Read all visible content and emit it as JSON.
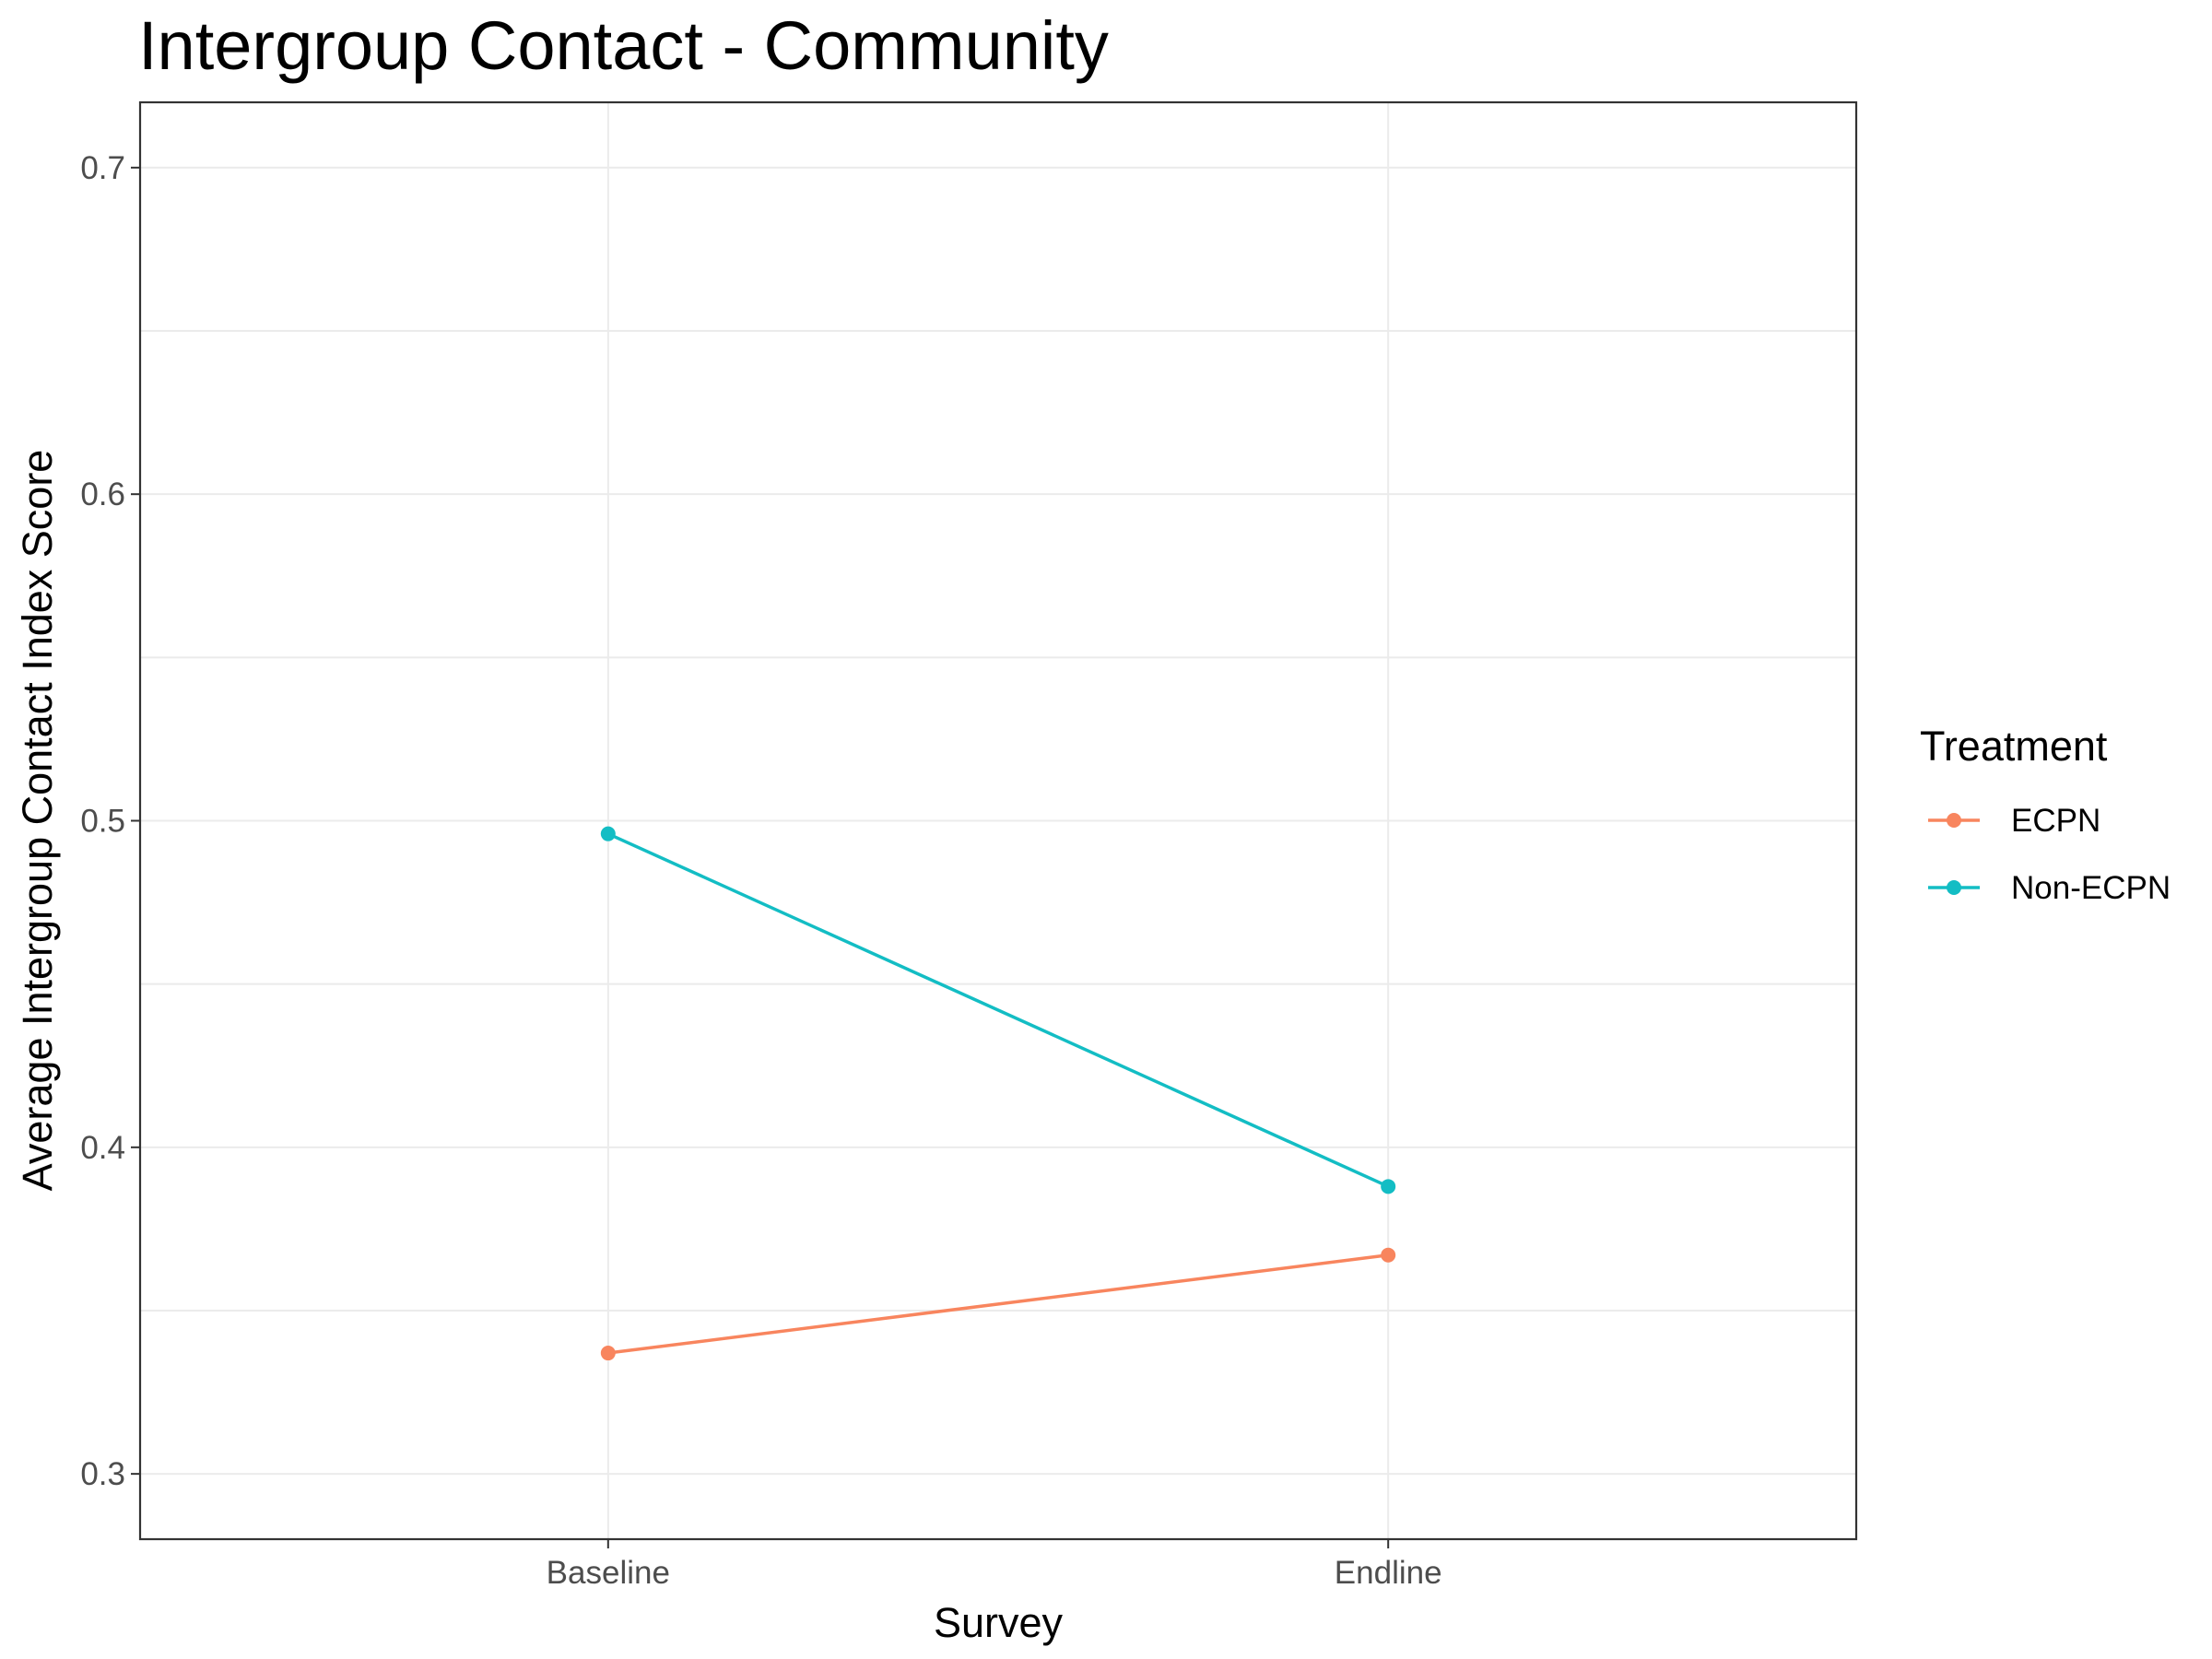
{
  "chart_data": {
    "type": "line",
    "title": "Intergroup Contact - Community",
    "xlabel": "Survey",
    "ylabel": "Average Intergroup Contact Index Score",
    "categories": [
      "Baseline",
      "Endline"
    ],
    "ylim": [
      0.28,
      0.72
    ],
    "yticks": [
      0.3,
      0.4,
      0.5,
      0.6,
      0.7
    ],
    "ytick_labels": [
      "0.3",
      "0.4",
      "0.5",
      "0.6",
      "0.7"
    ],
    "grid": true,
    "legend": {
      "title": "Treatment",
      "position": "right"
    },
    "series": [
      {
        "name": "ECPN",
        "color": "#F8855E",
        "values": [
          0.337,
          0.367
        ]
      },
      {
        "name": "Non-ECPN",
        "color": "#13BDC4",
        "values": [
          0.496,
          0.388
        ]
      }
    ]
  }
}
